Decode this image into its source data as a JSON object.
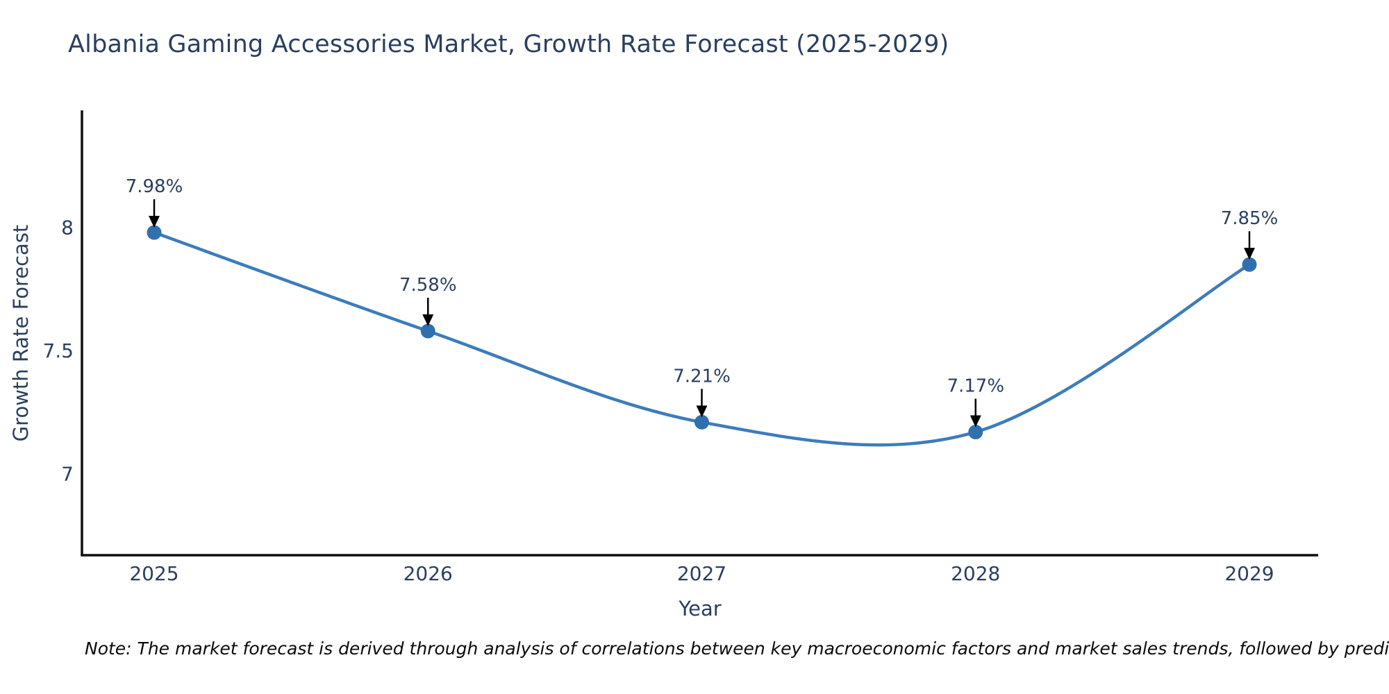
{
  "title": "Albania Gaming Accessories Market, Growth Rate Forecast (2025-2029)",
  "note": "Note: The market forecast is derived through analysis of correlations between key macroeconomic factors and market sales trends, followed by predictive modeling to project future sales",
  "chart_data": {
    "type": "line",
    "title": "Albania Gaming Accessories Market, Growth Rate Forecast (2025-2029)",
    "categories": [
      "2025",
      "2026",
      "2027",
      "2028",
      "2029"
    ],
    "series": [
      {
        "name": "Growth Rate Forecast",
        "values": [
          7.98,
          7.58,
          7.21,
          7.17,
          7.85
        ]
      }
    ],
    "point_labels": [
      "7.98%",
      "7.58%",
      "7.21%",
      "7.17%",
      "7.85%"
    ],
    "xlabel": "Year",
    "ylabel": "Growth Rate Forecast",
    "yticks": [
      7,
      7.5,
      8
    ],
    "ytick_labels": [
      "7",
      "7.5",
      "8"
    ],
    "ylim": [
      6.67,
      8.476
    ],
    "line_shape": "spline",
    "grid": false,
    "legend_position": "none",
    "colors": {
      "line": "#3d7cba",
      "marker": "#3070ae",
      "axis": "#0f0f0f",
      "text": "#2a3f5f",
      "annotation_arrow": "#000000"
    }
  }
}
